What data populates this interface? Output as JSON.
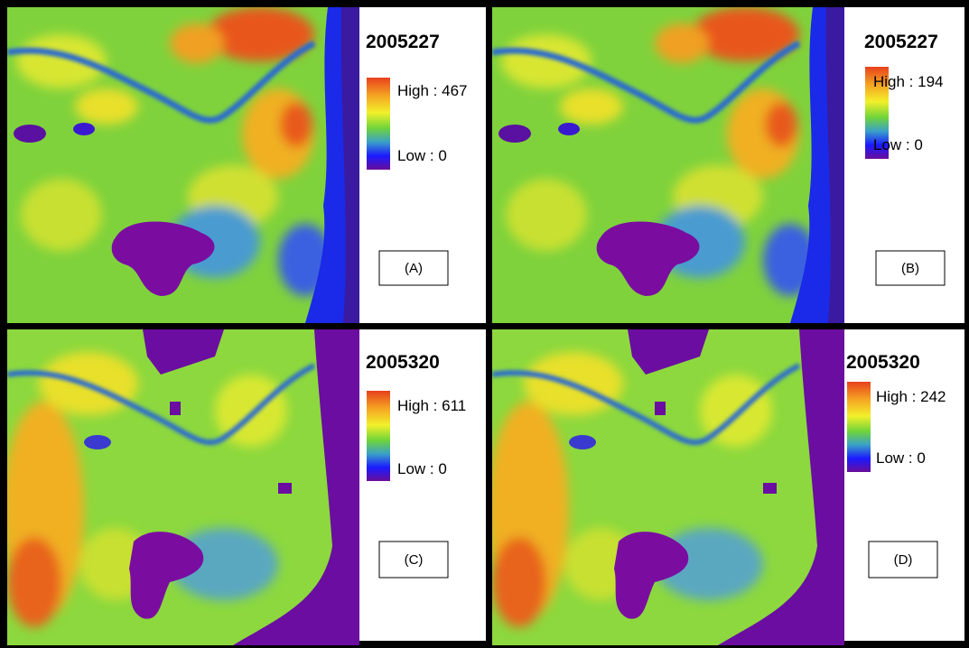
{
  "panels": [
    {
      "title": "2005227",
      "high": "High : 467",
      "low": "Low : 0",
      "label": "(A)"
    },
    {
      "title": "2005227",
      "high": "High : 194",
      "low": "Low : 0",
      "label": "(B)"
    },
    {
      "title": "2005320",
      "high": "High : 611",
      "low": "Low : 0",
      "label": "(C)"
    },
    {
      "title": "2005320",
      "high": "High : 242",
      "low": "Low : 0",
      "label": "(D)"
    }
  ]
}
